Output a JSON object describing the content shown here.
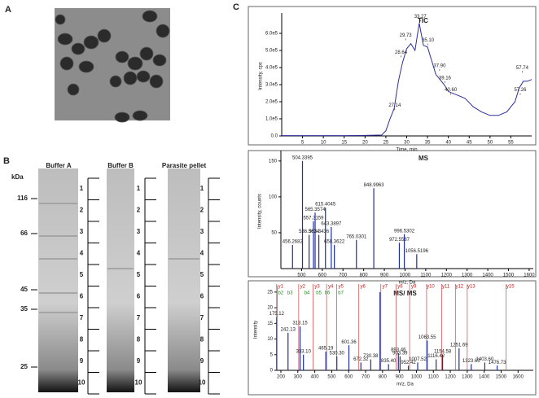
{
  "panels": {
    "a": "A",
    "b": "B",
    "c": "C"
  },
  "gel": {
    "unit": "kDa",
    "markers": [
      "116",
      "66",
      "45",
      "35",
      "25"
    ],
    "lanes": [
      "Buffer A",
      "Buffer B",
      "Parasite pellet"
    ],
    "slices": [
      "1",
      "2",
      "3",
      "4",
      "5",
      "6",
      "7",
      "8",
      "9",
      "10"
    ]
  },
  "chart_data": [
    {
      "type": "line",
      "title": "TIC",
      "x_label": "Time, min",
      "y_label": "Intensity, cps",
      "color": "#2a2f9a",
      "xlim": [
        0,
        60
      ],
      "xticks": [
        5,
        10,
        15,
        20,
        25,
        30,
        35,
        40,
        45,
        50,
        55
      ],
      "ylim": [
        0,
        700000
      ],
      "yticks": [
        {
          "value": 0,
          "label": "0.0"
        },
        {
          "value": 100000,
          "label": "1.0e5"
        },
        {
          "value": 200000,
          "label": "2.0e5"
        },
        {
          "value": 300000,
          "label": "3.0e5"
        },
        {
          "value": 400000,
          "label": "4.0e5"
        },
        {
          "value": 500000,
          "label": "5.0e5"
        },
        {
          "value": 600000,
          "label": "6.0e5"
        }
      ],
      "x": [
        0,
        5,
        10,
        15,
        20,
        24,
        25,
        26,
        27,
        28,
        29,
        30,
        31,
        32,
        33,
        34,
        35,
        36,
        37,
        38,
        39,
        40,
        42,
        44,
        46,
        48,
        50,
        52,
        54,
        56,
        57,
        58,
        59,
        60
      ],
      "values": [
        2000,
        2000,
        2000,
        2000,
        3000,
        5000,
        30000,
        100000,
        160000,
        320000,
        430000,
        510000,
        540000,
        500000,
        660000,
        530000,
        520000,
        440000,
        360000,
        330000,
        300000,
        260000,
        240000,
        220000,
        170000,
        140000,
        120000,
        120000,
        140000,
        200000,
        280000,
        320000,
        320000,
        330000
      ],
      "peak_labels": [
        "27.14",
        "28.64",
        "29.73",
        "33.27",
        "35.10",
        "37.90",
        "39.16",
        "40.60",
        "57.26",
        "57.74"
      ],
      "peak_x": [
        27.14,
        28.64,
        29.73,
        33.27,
        35.1,
        37.9,
        39.16,
        40.6,
        57.26,
        57.74
      ],
      "peak_y": [
        160000,
        470000,
        570000,
        680000,
        540000,
        390000,
        320000,
        250000,
        250000,
        380000
      ]
    },
    {
      "type": "bar",
      "title": "MS",
      "x_label": "m/z, Da",
      "y_label": "Intensity, counts",
      "color": "#1f2fa0",
      "xlim": [
        400,
        1620
      ],
      "xticks": [
        500,
        600,
        700,
        800,
        900,
        1000,
        1100,
        1200,
        1300,
        1400,
        1500,
        1600
      ],
      "ylim": [
        0,
        160
      ],
      "yticks": [
        50,
        100,
        150
      ],
      "x": [
        456.2682,
        504.3395,
        536.3634,
        557.3159,
        565.3574,
        583.3436,
        615.4045,
        643.3897,
        658.3622,
        765.0301,
        848.9963,
        972.5587,
        996.5302,
        1056.5196
      ],
      "values": [
        33,
        150,
        47,
        66,
        78,
        47,
        85,
        58,
        33,
        40,
        112,
        36,
        48,
        20
      ],
      "x_labels": [
        "456.2682",
        "504.3395",
        "536.3634",
        "557.3159",
        "565.3574",
        "583.3436",
        "615.4045",
        "643.3897",
        "658.3622",
        "765.0301",
        "848.9963",
        "972.5587",
        "996.5302",
        "1056.5196"
      ]
    },
    {
      "type": "bar",
      "title": "MS/ MS",
      "x_label": "m/z, Da",
      "y_label": "Intensity",
      "color": "#1f2fa0",
      "xlim": [
        176,
        1690
      ],
      "xticks": [
        200,
        300,
        400,
        500,
        600,
        700,
        800,
        900,
        1000,
        1100,
        1200,
        1300,
        1400,
        1500,
        1600
      ],
      "ylim": [
        0,
        26
      ],
      "yticks": [
        0,
        5,
        10,
        15,
        20,
        25
      ],
      "x": [
        175.12,
        242.13,
        313.15,
        333.1,
        465.19,
        530.3,
        601.36,
        672.32,
        730.38,
        785,
        835.4,
        893.46,
        903.39,
        952.42,
        1007.52,
        1063.55,
        1116.42,
        1154.58,
        1251.69,
        1323.63,
        1403.6,
        1476.73
      ],
      "values": [
        17,
        12,
        14,
        5,
        6,
        4.5,
        8,
        2.5,
        3.5,
        25,
        2,
        5.5,
        4.5,
        1.5,
        2.5,
        9.5,
        3.5,
        5,
        7,
        2,
        2.5,
        1.5
      ],
      "x_labels": [
        "175.12",
        "242.13",
        "313.15",
        "333.10",
        "465.19",
        "530.30",
        "601.36",
        "672.32",
        "730.38",
        null,
        "835.40",
        "893.46",
        "903.39",
        "952.42",
        "1007.52",
        "1063.55",
        "1116.42",
        "1154.58",
        "1251.69",
        "1323.63",
        "1403.60",
        "1476.73"
      ],
      "ions": [
        "y1",
        "y2",
        "y3",
        "y4",
        "y5",
        "y6",
        "y7",
        "y8",
        "y9",
        "y10",
        "y11",
        "y12",
        "y13",
        "y15"
      ],
      "ion_x": [
        175,
        305,
        390,
        470,
        530,
        660,
        790,
        880,
        960,
        1060,
        1150,
        1230,
        1300,
        1530
      ],
      "b_ions": [
        "b2",
        "b3",
        "b4",
        "b5",
        "b6",
        "b7"
      ],
      "b_ion_x": [
        175,
        230,
        330,
        400,
        450,
        530
      ]
    }
  ]
}
